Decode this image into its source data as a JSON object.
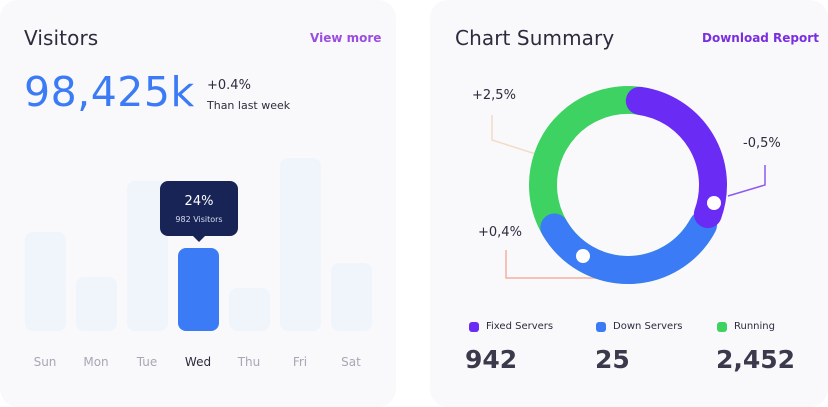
{
  "visitors": {
    "title": "Visitors",
    "view_more": "View more",
    "total": "98,425k",
    "delta": "+0.4%",
    "delta_sub": "Than last week",
    "tooltip": {
      "percent": "24%",
      "visitors": "982 Visitors"
    },
    "days": [
      "Sun",
      "Mon",
      "Tue",
      "Wed",
      "Thu",
      "Fri",
      "Sat"
    ],
    "active_day": "Wed",
    "bar_levels": [
      0.57,
      0.31,
      0.89,
      0.48,
      0.25,
      1.0,
      0.39
    ]
  },
  "summary": {
    "title": "Chart Summary",
    "download": "Download Report",
    "donut_labels": {
      "running": "+2,5%",
      "fixed": "-0,5%",
      "down": "+0,4%"
    },
    "legend": [
      {
        "label": "Fixed Servers",
        "value": "942",
        "color": "#6a2bf5"
      },
      {
        "label": "Down Servers",
        "value": "25",
        "color": "#3b7bf6"
      },
      {
        "label": "Running",
        "value": "2,452",
        "color": "#3ed262"
      }
    ]
  },
  "chart_data": {
    "type": "pie",
    "categories": [
      "Fixed Servers",
      "Down Servers",
      "Running"
    ],
    "values": [
      942,
      25,
      2452
    ],
    "donut": true
  }
}
